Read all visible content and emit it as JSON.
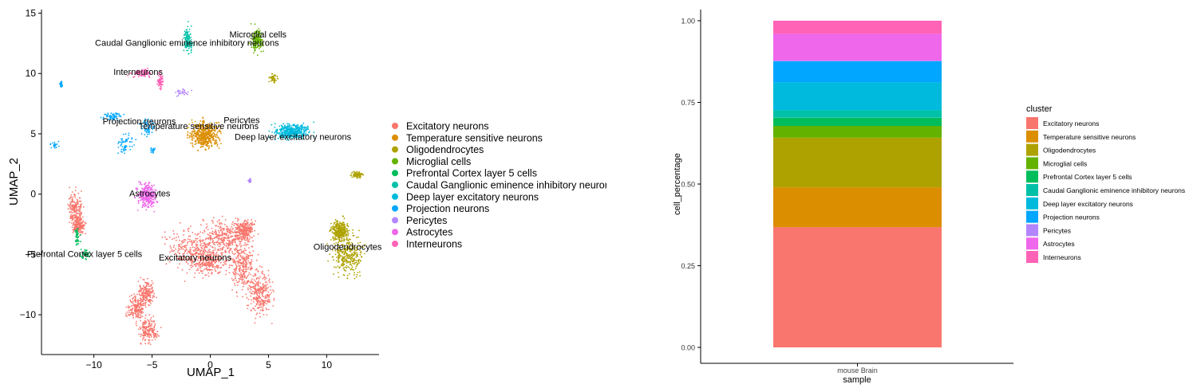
{
  "clusters": [
    {
      "name": "Excitatory neurons",
      "color": "#F8766D"
    },
    {
      "name": "Temperature sensitive neurons",
      "color": "#DB8E00"
    },
    {
      "name": "Oligodendrocytes",
      "color": "#AEA200"
    },
    {
      "name": "Microglial cells",
      "color": "#64B200"
    },
    {
      "name": "Prefrontal Cortex layer 5 cells",
      "color": "#00BD5C"
    },
    {
      "name": "Caudal Ganglionic eminence inhibitory neurons",
      "color": "#00C1A7"
    },
    {
      "name": "Deep layer excitatory neurons",
      "color": "#00BADE"
    },
    {
      "name": "Projection neurons",
      "color": "#00A6FF"
    },
    {
      "name": "Pericytes",
      "color": "#B385FF"
    },
    {
      "name": "Astrocytes",
      "color": "#EF67EB"
    },
    {
      "name": "Interneurons",
      "color": "#FF63B6"
    }
  ],
  "chart_data": [
    {
      "type": "scatter",
      "xlabel": "UMAP_1",
      "ylabel": "UMAP_2",
      "xlim": [
        -14.5,
        14.5
      ],
      "ylim": [
        -13.3,
        15.3
      ],
      "xticks": [
        -10,
        -5,
        0,
        5,
        10
      ],
      "xtick_labels": [
        "−10",
        "−5",
        "0",
        "5",
        "10"
      ],
      "yticks": [
        -10,
        -5,
        0,
        5,
        10,
        15
      ],
      "ytick_labels": [
        "−10",
        "−5",
        "0",
        "5",
        "10",
        "15"
      ],
      "grid": false,
      "legend_position": "right",
      "cluster_labels": [
        {
          "text": "Microglial cells",
          "x": 4.1,
          "y": 13.0
        },
        {
          "text": "Caudal Ganglionic eminence inhibitory neurons",
          "x": -2.0,
          "y": 12.3
        },
        {
          "text": "Interneurons",
          "x": -6.2,
          "y": 9.9
        },
        {
          "text": "Pericytes",
          "x": 2.7,
          "y": 5.9
        },
        {
          "text": "Projection neurons",
          "x": -6.1,
          "y": 5.8
        },
        {
          "text": "Temperature sensitive neurons",
          "x": -1.0,
          "y": 5.4
        },
        {
          "text": "Deep layer excitatory neurons",
          "x": 7.1,
          "y": 4.5
        },
        {
          "text": "Astrocytes",
          "x": -5.2,
          "y": -0.2
        },
        {
          "text": "Oligodendrocytes",
          "x": 11.8,
          "y": -4.6
        },
        {
          "text": "Prefrontal Cortex layer 5 cells",
          "x": -10.8,
          "y": -5.2
        },
        {
          "text": "Excitatory neurons",
          "x": -1.3,
          "y": -5.5
        }
      ],
      "point_groups": [
        {
          "cluster": "Excitatory neurons",
          "n": 1700,
          "blobs": [
            [
              -1.5,
              -4.5,
              2.2,
              1.4
            ],
            [
              1.2,
              -3.5,
              1.6,
              1.1
            ],
            [
              2.8,
              -6.0,
              1.0,
              1.6
            ],
            [
              -0.2,
              -5.6,
              1.5,
              1.0
            ],
            [
              4.3,
              -8.3,
              0.9,
              1.5
            ],
            [
              3.0,
              -3.0,
              0.7,
              0.7
            ]
          ]
        },
        {
          "cluster": "Excitatory neurons",
          "n": 380,
          "blobs": [
            [
              -11.6,
              -1.2,
              0.55,
              1.2
            ],
            [
              -11.3,
              -2.6,
              0.5,
              0.6
            ]
          ]
        },
        {
          "cluster": "Excitatory neurons",
          "n": 560,
          "blobs": [
            [
              -5.3,
              -11.3,
              0.7,
              0.9
            ],
            [
              -6.3,
              -9.5,
              0.7,
              0.8
            ],
            [
              -5.5,
              -8.2,
              0.6,
              0.8
            ]
          ]
        },
        {
          "cluster": "Temperature sensitive neurons",
          "n": 500,
          "blobs": [
            [
              -0.5,
              4.9,
              1.1,
              0.9
            ]
          ]
        },
        {
          "cluster": "Oligodendrocytes",
          "n": 650,
          "blobs": [
            [
              11.8,
              -4.9,
              1.1,
              1.5
            ],
            [
              11.1,
              -3.0,
              0.6,
              0.7
            ]
          ]
        },
        {
          "cluster": "Oligodendrocytes",
          "n": 80,
          "blobs": [
            [
              12.6,
              1.6,
              0.5,
              0.25
            ]
          ]
        },
        {
          "cluster": "Oligodendrocytes",
          "n": 50,
          "blobs": [
            [
              5.4,
              9.6,
              0.35,
              0.4
            ]
          ]
        },
        {
          "cluster": "Microglial cells",
          "n": 170,
          "blobs": [
            [
              4.0,
              12.8,
              0.4,
              0.8
            ]
          ]
        },
        {
          "cluster": "Prefrontal Cortex layer 5 cells",
          "n": 90,
          "blobs": [
            [
              -10.8,
              -5.0,
              0.45,
              0.35
            ],
            [
              -11.4,
              -3.6,
              0.2,
              0.7
            ]
          ]
        },
        {
          "cluster": "Caudal Ganglionic eminence inhibitory neurons",
          "n": 120,
          "blobs": [
            [
              -1.9,
              12.8,
              0.35,
              0.9
            ]
          ]
        },
        {
          "cluster": "Deep layer excitatory neurons",
          "n": 420,
          "blobs": [
            [
              7.0,
              5.2,
              1.2,
              0.55
            ]
          ]
        },
        {
          "cluster": "Projection neurons",
          "n": 180,
          "blobs": [
            [
              -7.3,
              4.2,
              0.55,
              0.7
            ],
            [
              -5.3,
              5.5,
              0.5,
              0.6
            ],
            [
              -8.4,
              6.4,
              0.7,
              0.25
            ]
          ]
        },
        {
          "cluster": "Projection neurons",
          "n": 60,
          "blobs": [
            [
              -13.3,
              4.1,
              0.3,
              0.25
            ],
            [
              -4.9,
              3.6,
              0.25,
              0.2
            ],
            [
              -12.8,
              9.1,
              0.1,
              0.2
            ]
          ]
        },
        {
          "cluster": "Pericytes",
          "n": 60,
          "blobs": [
            [
              -2.4,
              8.4,
              0.55,
              0.25
            ],
            [
              3.4,
              1.1,
              0.1,
              0.15
            ]
          ]
        },
        {
          "cluster": "Astrocytes",
          "n": 320,
          "blobs": [
            [
              -5.4,
              -0.1,
              0.7,
              0.9
            ]
          ]
        },
        {
          "cluster": "Interneurons",
          "n": 150,
          "blobs": [
            [
              -6.0,
              10.0,
              0.7,
              0.35
            ],
            [
              -4.3,
              9.4,
              0.2,
              0.5
            ]
          ]
        }
      ]
    },
    {
      "type": "bar",
      "stacked": true,
      "xlabel": "sample",
      "ylabel": "cell_percentage",
      "categories": [
        "mouse Brain"
      ],
      "ylim": [
        0,
        1
      ],
      "yticks": [
        0,
        0.25,
        0.5,
        0.75,
        1
      ],
      "ytick_labels": [
        "0.00",
        "0.25",
        "0.50",
        "0.75",
        "1.00"
      ],
      "grid": false,
      "legend_title": "cluster",
      "legend_position": "right",
      "series": [
        {
          "name": "Excitatory neurons",
          "values": [
            0.368
          ]
        },
        {
          "name": "Temperature sensitive neurons",
          "values": [
            0.122
          ]
        },
        {
          "name": "Oligodendrocytes",
          "values": [
            0.152
          ]
        },
        {
          "name": "Microglial cells",
          "values": [
            0.036
          ]
        },
        {
          "name": "Prefrontal Cortex layer 5 cells",
          "values": [
            0.025
          ]
        },
        {
          "name": "Caudal Ganglionic eminence inhibitory neurons",
          "values": [
            0.023
          ]
        },
        {
          "name": "Deep layer excitatory neurons",
          "values": [
            0.085
          ]
        },
        {
          "name": "Projection neurons",
          "values": [
            0.065
          ]
        },
        {
          "name": "Pericytes",
          "values": [
            0.002
          ]
        },
        {
          "name": "Astrocytes",
          "values": [
            0.082
          ]
        },
        {
          "name": "Interneurons",
          "values": [
            0.04
          ]
        }
      ]
    }
  ]
}
